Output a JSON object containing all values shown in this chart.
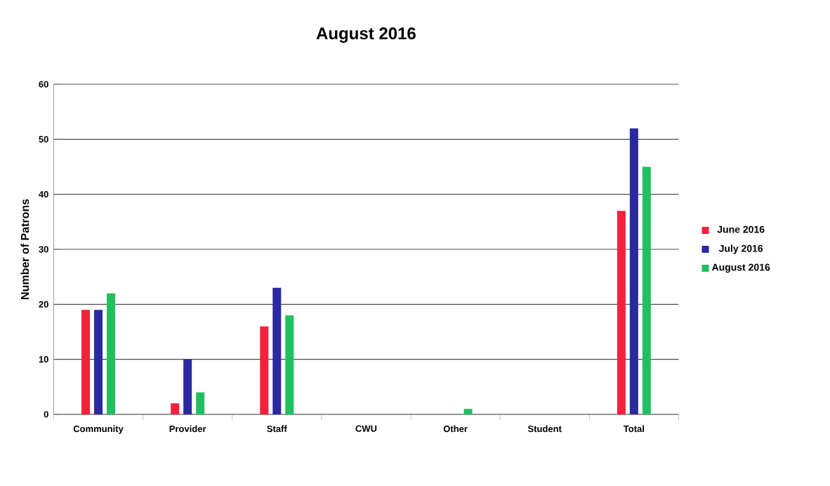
{
  "chart_data": {
    "type": "bar",
    "title": "August 2016",
    "ylabel": "Number of Patrons",
    "categories": [
      "Community",
      "Provider",
      "Staff",
      "CWU",
      "Other",
      "Student",
      "Total"
    ],
    "series": [
      {
        "name": "June 2016",
        "color": "#f5203a",
        "values": [
          19,
          2,
          16,
          0,
          0,
          0,
          37
        ]
      },
      {
        "name": "July 2016",
        "color": "#2a2aa0",
        "values": [
          19,
          10,
          23,
          0,
          0,
          0,
          52
        ]
      },
      {
        "name": "August 2016",
        "color": "#20c060",
        "values": [
          22,
          4,
          18,
          0,
          1,
          0,
          45
        ]
      }
    ],
    "ylim": [
      0,
      60
    ],
    "yticks": [
      0,
      10,
      20,
      30,
      40,
      50,
      60
    ],
    "grid": "y",
    "legend": "right"
  }
}
